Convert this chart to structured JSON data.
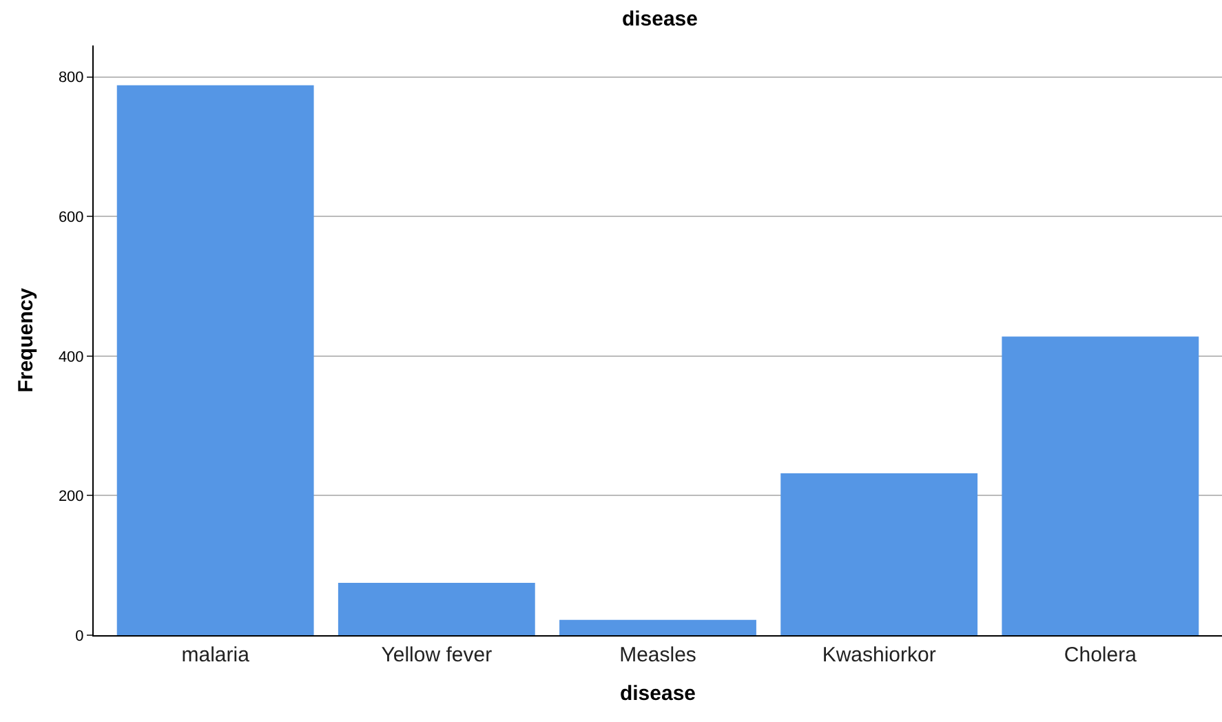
{
  "chart_data": {
    "type": "bar",
    "title": "disease",
    "xlabel": "disease",
    "ylabel": "Frequency",
    "categories": [
      "malaria",
      "Yellow fever",
      "Measles",
      "Kwashiorkor",
      "Cholera"
    ],
    "values": [
      788,
      75,
      22,
      232,
      428
    ],
    "color": "#5596e5",
    "ylim": [
      0,
      845
    ],
    "yticks": [
      0,
      200,
      400,
      600,
      800
    ],
    "grid": "y"
  }
}
